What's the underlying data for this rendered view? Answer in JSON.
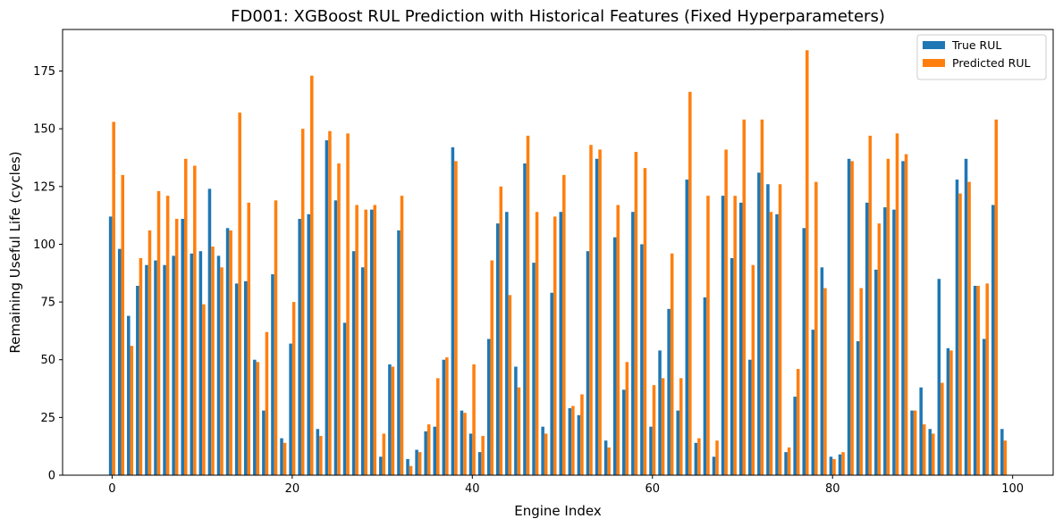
{
  "chart_data": {
    "type": "bar",
    "title": "FD001: XGBoost RUL Prediction with Historical Features (Fixed Hyperparameters)",
    "xlabel": "Engine Index",
    "ylabel": "Remaining Useful Life (cycles)",
    "xlim": [
      -5.5,
      104.5
    ],
    "ylim": [
      0,
      193
    ],
    "xticks": [
      0,
      20,
      40,
      60,
      80,
      100
    ],
    "yticks": [
      0,
      25,
      50,
      75,
      100,
      125,
      150,
      175
    ],
    "grid": false,
    "legend_position": "top-right",
    "series": [
      {
        "name": "True RUL",
        "color": "#1f77b4",
        "values": [
          112,
          98,
          69,
          82,
          91,
          93,
          91,
          95,
          111,
          96,
          97,
          124,
          95,
          107,
          83,
          84,
          50,
          28,
          87,
          16,
          57,
          111,
          113,
          20,
          145,
          119,
          66,
          97,
          90,
          115,
          8,
          48,
          106,
          7,
          11,
          19,
          21,
          50,
          142,
          28,
          18,
          10,
          59,
          109,
          114,
          47,
          135,
          92,
          21,
          79,
          114,
          29,
          26,
          97,
          137,
          15,
          103,
          37,
          114,
          100,
          21,
          54,
          72,
          28,
          128,
          14,
          77,
          8,
          121,
          94,
          118,
          50,
          131,
          126,
          113,
          10,
          34,
          107,
          63,
          90,
          8,
          9,
          137,
          58,
          118,
          89,
          116,
          115,
          136,
          28,
          38,
          20,
          85,
          55,
          128,
          137,
          82,
          59,
          117,
          20
        ]
      },
      {
        "name": "Predicted RUL",
        "color": "#ff7f0e",
        "values": [
          153,
          130,
          56,
          94,
          106,
          123,
          121,
          111,
          137,
          134,
          74,
          99,
          90,
          106,
          157,
          118,
          49,
          62,
          119,
          14,
          75,
          150,
          173,
          17,
          149,
          135,
          148,
          117,
          115,
          117,
          18,
          47,
          121,
          4,
          10,
          22,
          42,
          51,
          136,
          27,
          48,
          17,
          93,
          125,
          78,
          38,
          147,
          114,
          18,
          112,
          130,
          30,
          35,
          143,
          141,
          12,
          117,
          49,
          140,
          133,
          39,
          42,
          96,
          42,
          166,
          16,
          121,
          15,
          141,
          121,
          154,
          91,
          154,
          114,
          126,
          12,
          46,
          184,
          127,
          81,
          7,
          10,
          136,
          81,
          147,
          109,
          137,
          148,
          139,
          28,
          22,
          18,
          40,
          54,
          122,
          127,
          82,
          83,
          154,
          15
        ]
      }
    ]
  }
}
